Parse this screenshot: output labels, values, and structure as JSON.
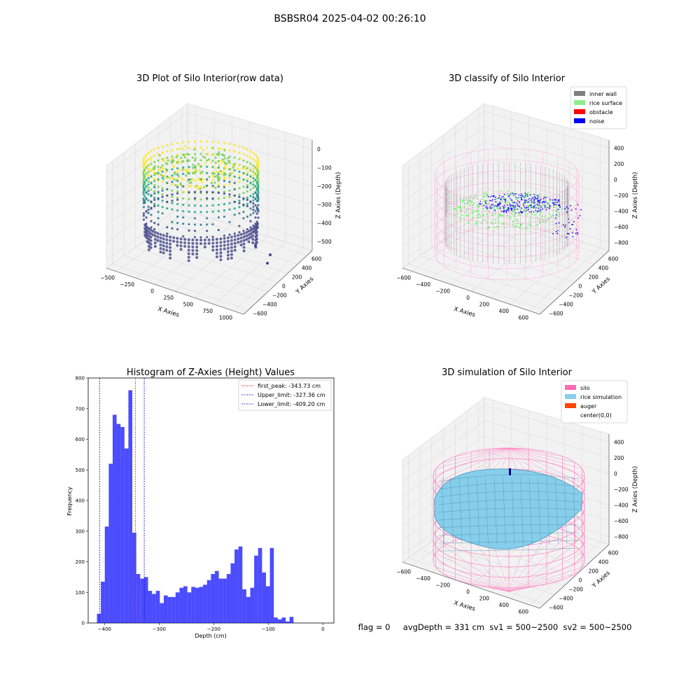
{
  "suptitle": "BSBSR04 2025-04-02 00:26:10",
  "status_text": "flag = 0     avgDepth = 331 cm  sv1 = 500~2500  sv2 = 500~2500",
  "chart_data": [
    {
      "type": "scatter",
      "title": "3D Plot of Silo Interior(row data)",
      "xlabel": "X Axies",
      "ylabel": "Y Axies",
      "zlabel": "Z Axies (Depth)",
      "x_ticks": [
        "−500",
        "−250",
        "0",
        "250",
        "500",
        "750",
        "1000"
      ],
      "y_ticks": [
        "−600",
        "−400",
        "−200",
        "0",
        "200",
        "400",
        "600"
      ],
      "z_ticks": [
        "−500",
        "−400",
        "−300",
        "−200",
        "−100",
        "0"
      ],
      "xlim": [
        -600,
        1100
      ],
      "ylim": [
        -650,
        650
      ],
      "zlim": [
        -550,
        20
      ],
      "colormap": "viridis"
    },
    {
      "type": "scatter",
      "title": "3D classify of Silo Interior",
      "xlabel": "X Axies",
      "ylabel": "Y Axies",
      "zlabel": "Z Axies (Depth)",
      "x_ticks": [
        "−600",
        "−400",
        "−200",
        "0",
        "200",
        "400",
        "600"
      ],
      "y_ticks": [
        "−600",
        "−400",
        "−200",
        "0",
        "200",
        "400",
        "600"
      ],
      "z_ticks": [
        "−800",
        "−600",
        "−400",
        "−200",
        "0",
        "200",
        "400"
      ],
      "legend": [
        {
          "label": "inner wall",
          "color": "#808080"
        },
        {
          "label": "rice surface",
          "color": "#90ee90"
        },
        {
          "label": "obstacle",
          "color": "#ff0000"
        },
        {
          "label": "noise",
          "color": "#0000ff"
        }
      ],
      "legend_placement": "top-right"
    },
    {
      "type": "bar",
      "title": "Histogram of Z-Axies (Height) Values",
      "xlabel": "Depth (cm)",
      "ylabel": "Frequency",
      "x_ticks": [
        "−400",
        "−300",
        "−200",
        "−100",
        "0"
      ],
      "y_ticks": [
        "0",
        "100",
        "200",
        "300",
        "400",
        "500",
        "600",
        "700",
        "800"
      ],
      "xlim": [
        -430,
        20
      ],
      "ylim": [
        0,
        800
      ],
      "bin_start": -414,
      "bin_width": 7.2,
      "values": [
        30,
        135,
        315,
        520,
        680,
        650,
        640,
        570,
        760,
        295,
        160,
        145,
        150,
        105,
        95,
        105,
        65,
        90,
        85,
        85,
        100,
        115,
        120,
        100,
        118,
        115,
        118,
        125,
        140,
        160,
        170,
        145,
        145,
        160,
        195,
        240,
        250,
        110,
        85,
        115,
        220,
        245,
        165,
        120,
        245,
        18,
        12,
        18,
        5,
        20
      ],
      "bar_color": "#0000ff",
      "bar_alpha": 0.7,
      "reference_lines": [
        {
          "label": "first_peak: -343.73 cm",
          "x": -343.73,
          "color": "#ff0000"
        },
        {
          "label": "Upper_limit: -327.36 cm",
          "x": -327.36,
          "color": "#0000cc"
        },
        {
          "label": "Lower_limit: -409.20 cm",
          "x": -409.2,
          "color": "#0000cc"
        }
      ],
      "legend_placement": "top-right"
    },
    {
      "type": "surface",
      "title": "3D simulation of Silo Interior",
      "xlabel": "X Axies",
      "ylabel": "Y Axies",
      "zlabel": "Z Axies (Depth)",
      "x_ticks": [
        "−600",
        "−400",
        "−200",
        "0",
        "200",
        "400",
        "600"
      ],
      "y_ticks": [
        "−600",
        "−400",
        "−200",
        "0",
        "200",
        "400",
        "600"
      ],
      "z_ticks": [
        "−800",
        "−600",
        "−400",
        "−200",
        "0",
        "200",
        "400"
      ],
      "legend": [
        {
          "label": "silo",
          "color": "#ff69b4"
        },
        {
          "label": "rice simulation",
          "color": "#87ceeb"
        },
        {
          "label": "auger",
          "color": "#ff4500"
        },
        {
          "label": "center(0,0)",
          "color": ""
        }
      ],
      "legend_placement": "top-right"
    }
  ]
}
